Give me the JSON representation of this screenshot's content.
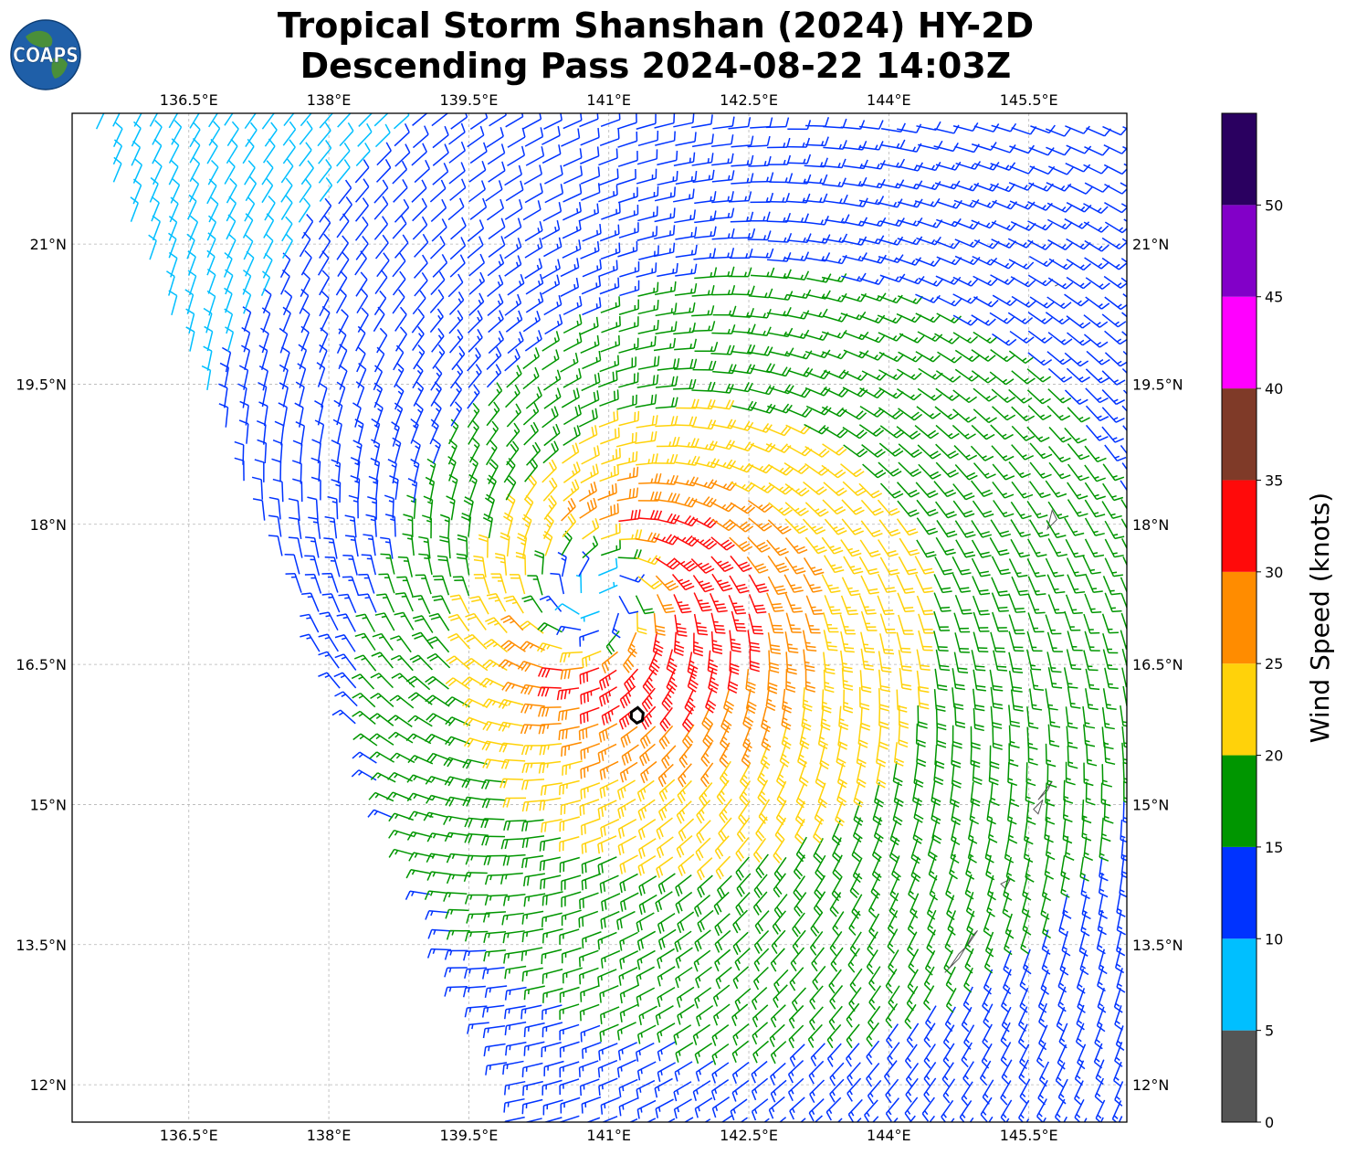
{
  "title": {
    "line1": "Tropical Storm Shanshan (2024) HY-2D",
    "line2": "Descending Pass 2024-08-22 14:03Z"
  },
  "logo": {
    "text": "COAPS",
    "ocean_color": "#1f5fa8",
    "land_color": "#4a8f3a"
  },
  "map": {
    "lon_range": [
      135.25,
      146.55
    ],
    "lat_range": [
      11.6,
      22.4
    ],
    "lon_ticks": [
      {
        "value": 136.5,
        "label": "136.5°E"
      },
      {
        "value": 138.0,
        "label": "138°E"
      },
      {
        "value": 139.5,
        "label": "139.5°E"
      },
      {
        "value": 141.0,
        "label": "141°E"
      },
      {
        "value": 142.5,
        "label": "142.5°E"
      },
      {
        "value": 144.0,
        "label": "144°E"
      },
      {
        "value": 145.5,
        "label": "145.5°E"
      }
    ],
    "lat_ticks": [
      {
        "value": 21.0,
        "label": "21°N"
      },
      {
        "value": 19.5,
        "label": "19.5°N"
      },
      {
        "value": 18.0,
        "label": "18°N"
      },
      {
        "value": 16.5,
        "label": "16.5°N"
      },
      {
        "value": 15.0,
        "label": "15°N"
      },
      {
        "value": 13.5,
        "label": "13.5°N"
      },
      {
        "value": 12.0,
        "label": "12°N"
      }
    ],
    "grid": true,
    "storm": {
      "circulation_center": {
        "lon": 140.9,
        "lat": 17.2
      },
      "marked_position": {
        "lon": 141.3,
        "lat": 15.95
      },
      "max_wind_kt": 33,
      "radius_of_max_wind_deg": 0.9,
      "environment_wind_kt": 10
    },
    "swath": {
      "top_lat": 22.4,
      "top_west_lon": 135.35,
      "top_east_lon": 146.55,
      "bottom_lat": 11.6,
      "bottom_west_lon": 140.1,
      "bottom_east_lon": 146.55
    },
    "islands": [
      {
        "name": "",
        "outline": [
          [
            144.6,
            13.2
          ],
          [
            144.75,
            13.35
          ],
          [
            144.9,
            13.6
          ],
          [
            144.95,
            13.65
          ],
          [
            144.85,
            13.5
          ],
          [
            144.75,
            13.4
          ],
          [
            144.65,
            13.25
          ]
        ]
      },
      {
        "name": "",
        "outline": [
          [
            145.6,
            15.05
          ],
          [
            145.75,
            15.25
          ],
          [
            145.7,
            15.15
          ]
        ]
      },
      {
        "name": "",
        "outline": [
          [
            145.55,
            14.95
          ],
          [
            145.65,
            15.05
          ],
          [
            145.6,
            14.9
          ]
        ]
      },
      {
        "name": "",
        "outline": [
          [
            145.2,
            14.15
          ],
          [
            145.3,
            14.2
          ],
          [
            145.25,
            14.1
          ]
        ]
      },
      {
        "name": "",
        "outline": [
          [
            145.7,
            17.95
          ],
          [
            145.75,
            18.15
          ],
          [
            145.8,
            18.05
          ]
        ]
      },
      {
        "name": "",
        "outline": [
          [
            145.78,
            20.55
          ],
          [
            145.82,
            20.57
          ]
        ]
      }
    ]
  },
  "colorbar": {
    "title": "Wind Speed (knots)",
    "bins": [
      {
        "min": 0,
        "max": 5,
        "color": "#555555"
      },
      {
        "min": 5,
        "max": 10,
        "color": "#00bfff"
      },
      {
        "min": 10,
        "max": 15,
        "color": "#0033ff"
      },
      {
        "min": 15,
        "max": 20,
        "color": "#009600"
      },
      {
        "min": 20,
        "max": 25,
        "color": "#ffd20a"
      },
      {
        "min": 25,
        "max": 30,
        "color": "#ff8c00"
      },
      {
        "min": 30,
        "max": 35,
        "color": "#ff0a0a"
      },
      {
        "min": 35,
        "max": 40,
        "color": "#7f3a28"
      },
      {
        "min": 40,
        "max": 45,
        "color": "#ff00ff"
      },
      {
        "min": 45,
        "max": 50,
        "color": "#8200c8"
      },
      {
        "min": 50,
        "max": 55,
        "color": "#2a0060"
      }
    ],
    "ticks": [
      "0",
      "5",
      "10",
      "15",
      "20",
      "25",
      "30",
      "35",
      "40",
      "45",
      "50"
    ]
  }
}
